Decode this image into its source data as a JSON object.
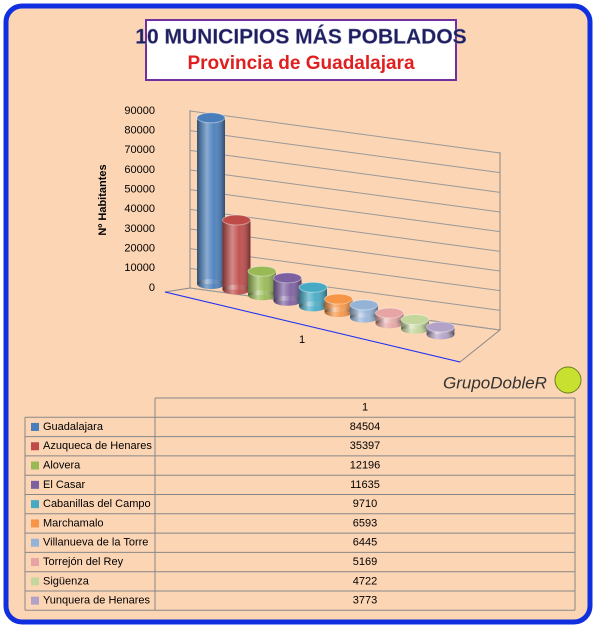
{
  "chart_data": {
    "type": "bar3d",
    "title": "10 MUNICIPIOS MÁS POBLADOS",
    "subtitle": "Provincia de Guadalajara",
    "y_label": "Nº Habitantes",
    "watermark": "GrupoDobleR",
    "categories": [
      "1"
    ],
    "series": [
      {
        "name": "Guadalajara",
        "color": "#4a7ebb",
        "values": [
          84504
        ]
      },
      {
        "name": "Azuqueca de Henares",
        "color": "#be4b48",
        "values": [
          35397
        ]
      },
      {
        "name": "Alovera",
        "color": "#98b954",
        "values": [
          12196
        ]
      },
      {
        "name": "El Casar",
        "color": "#7d60a0",
        "values": [
          11635
        ]
      },
      {
        "name": "Cabanillas del Campo",
        "color": "#46aac5",
        "values": [
          9710
        ]
      },
      {
        "name": "Marchamalo",
        "color": "#f69546",
        "values": [
          6593
        ]
      },
      {
        "name": "Villanueva de la Torre",
        "color": "#95b3d7",
        "values": [
          6445
        ]
      },
      {
        "name": "Torrejón del Rey",
        "color": "#e6a5a4",
        "values": [
          5169
        ]
      },
      {
        "name": "Sigüenza",
        "color": "#c3d69b",
        "values": [
          4722
        ]
      },
      {
        "name": "Yunquera de Henares",
        "color": "#b3a2c7",
        "values": [
          3773
        ]
      }
    ],
    "ylim": [
      0,
      90000
    ],
    "yticks": [
      0,
      10000,
      20000,
      30000,
      40000,
      50000,
      60000,
      70000,
      80000,
      90000
    ],
    "grid": true
  }
}
